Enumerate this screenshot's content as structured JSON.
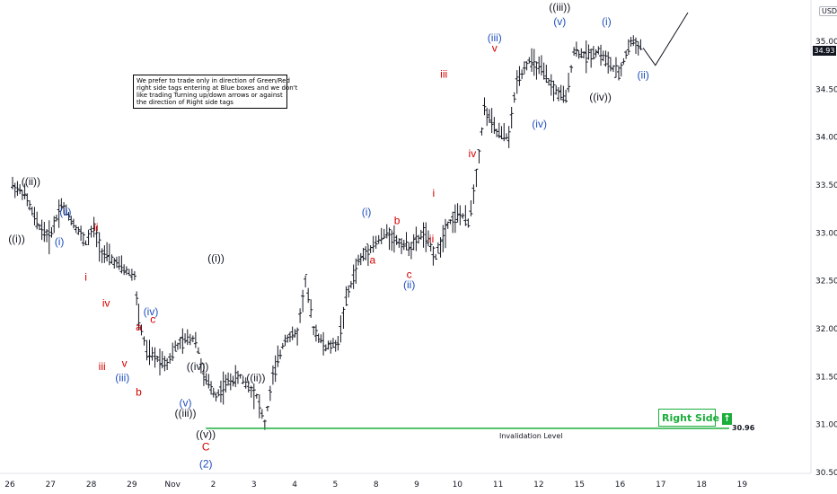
{
  "currency": "USD",
  "last_price": "34.93",
  "note_lines": [
    "We prefer to trade only in direction of Green/Red",
    "right side tags entering at Blue boxes and we don't",
    "like trading Turning up/down arrows or against",
    "the direction of Right side tags"
  ],
  "right_side_label": "Right Side",
  "invalidation_label": "Invalidation Level",
  "invalidation_value_text": "30.96",
  "colors": {
    "black": "#131722",
    "red": "#d50000",
    "blue": "#1f4fbf",
    "green": "#1aae3a"
  },
  "chart_data": {
    "type": "ohlc",
    "title": "",
    "xlabel": "",
    "ylabel": "",
    "ylim": [
      30.5,
      35.2
    ],
    "grid": false,
    "x_ticks": [
      "26",
      "27",
      "28",
      "29",
      "Nov",
      "2",
      "3",
      "4",
      "5",
      "8",
      "9",
      "10",
      "11",
      "12",
      "15",
      "16",
      "17",
      "18",
      "19"
    ],
    "y_ticks": [
      30.5,
      31.0,
      31.5,
      32.0,
      32.5,
      33.0,
      33.5,
      34.0,
      34.5,
      35.0
    ],
    "invalidation_level": 30.96,
    "price_path": [
      {
        "x": 0,
        "y": 33.5
      },
      {
        "x": 0.3,
        "y": 33.4
      },
      {
        "x": 0.6,
        "y": 33.1
      },
      {
        "x": 0.9,
        "y": 32.95
      },
      {
        "x": 1.2,
        "y": 33.3
      },
      {
        "x": 1.5,
        "y": 33.1
      },
      {
        "x": 1.8,
        "y": 32.9
      },
      {
        "x": 2.0,
        "y": 33.05
      },
      {
        "x": 2.2,
        "y": 32.8
      },
      {
        "x": 2.5,
        "y": 32.7
      },
      {
        "x": 2.8,
        "y": 32.6
      },
      {
        "x": 3.0,
        "y": 32.55
      },
      {
        "x": 3.1,
        "y": 32.1
      },
      {
        "x": 3.3,
        "y": 31.75
      },
      {
        "x": 3.5,
        "y": 31.7
      },
      {
        "x": 3.8,
        "y": 31.65
      },
      {
        "x": 4.0,
        "y": 31.8
      },
      {
        "x": 4.3,
        "y": 31.9
      },
      {
        "x": 4.5,
        "y": 31.9
      },
      {
        "x": 4.7,
        "y": 31.5
      },
      {
        "x": 5.0,
        "y": 31.3
      },
      {
        "x": 5.3,
        "y": 31.45
      },
      {
        "x": 5.6,
        "y": 31.5
      },
      {
        "x": 6.0,
        "y": 31.3
      },
      {
        "x": 6.2,
        "y": 31.0
      },
      {
        "x": 6.4,
        "y": 31.5
      },
      {
        "x": 6.7,
        "y": 31.9
      },
      {
        "x": 7.0,
        "y": 31.95
      },
      {
        "x": 7.2,
        "y": 32.5
      },
      {
        "x": 7.4,
        "y": 32.0
      },
      {
        "x": 7.7,
        "y": 31.8
      },
      {
        "x": 8.0,
        "y": 31.85
      },
      {
        "x": 8.2,
        "y": 32.3
      },
      {
        "x": 8.5,
        "y": 32.7
      },
      {
        "x": 8.8,
        "y": 32.85
      },
      {
        "x": 9.2,
        "y": 33.0
      },
      {
        "x": 9.5,
        "y": 32.9
      },
      {
        "x": 9.8,
        "y": 32.85
      },
      {
        "x": 10.1,
        "y": 33.0
      },
      {
        "x": 10.4,
        "y": 32.75
      },
      {
        "x": 10.7,
        "y": 33.1
      },
      {
        "x": 11.0,
        "y": 33.2
      },
      {
        "x": 11.2,
        "y": 33.1
      },
      {
        "x": 11.4,
        "y": 33.6
      },
      {
        "x": 11.6,
        "y": 34.3
      },
      {
        "x": 11.9,
        "y": 34.05
      },
      {
        "x": 12.2,
        "y": 34.0
      },
      {
        "x": 12.4,
        "y": 34.6
      },
      {
        "x": 12.7,
        "y": 34.8
      },
      {
        "x": 13.0,
        "y": 34.7
      },
      {
        "x": 13.3,
        "y": 34.5
      },
      {
        "x": 13.6,
        "y": 34.4
      },
      {
        "x": 13.8,
        "y": 34.9
      },
      {
        "x": 14.1,
        "y": 34.85
      },
      {
        "x": 14.4,
        "y": 34.9
      },
      {
        "x": 14.7,
        "y": 34.75
      },
      {
        "x": 14.9,
        "y": 34.65
      },
      {
        "x": 15.2,
        "y": 35.0
      },
      {
        "x": 15.5,
        "y": 34.93
      }
    ],
    "projection": [
      {
        "x": 15.5,
        "y": 34.93
      },
      {
        "x": 15.8,
        "y": 34.75
      },
      {
        "x": 16.6,
        "y": 35.3
      }
    ],
    "wave_labels": [
      {
        "text": "((i))",
        "x": 0.1,
        "y": 32.9,
        "color": "black"
      },
      {
        "text": "((ii))",
        "x": 0.45,
        "y": 33.5,
        "color": "black"
      },
      {
        "text": "(i)",
        "x": 1.15,
        "y": 32.87,
        "color": "blue"
      },
      {
        "text": "(ii)",
        "x": 1.3,
        "y": 33.18,
        "color": "blue"
      },
      {
        "text": "i",
        "x": 1.8,
        "y": 32.5,
        "color": "red"
      },
      {
        "text": "ii",
        "x": 2.05,
        "y": 33.02,
        "color": "red"
      },
      {
        "text": "iii",
        "x": 2.2,
        "y": 31.57,
        "color": "red"
      },
      {
        "text": "iv",
        "x": 2.3,
        "y": 32.23,
        "color": "red"
      },
      {
        "text": "v",
        "x": 2.75,
        "y": 31.6,
        "color": "red"
      },
      {
        "text": "(iii)",
        "x": 2.7,
        "y": 31.45,
        "color": "blue"
      },
      {
        "text": "a",
        "x": 3.1,
        "y": 31.98,
        "color": "red"
      },
      {
        "text": "b",
        "x": 3.1,
        "y": 31.3,
        "color": "red"
      },
      {
        "text": "(iv)",
        "x": 3.4,
        "y": 32.14,
        "color": "blue"
      },
      {
        "text": "c",
        "x": 3.45,
        "y": 32.06,
        "color": "red"
      },
      {
        "text": "(v)",
        "x": 4.25,
        "y": 31.19,
        "color": "blue"
      },
      {
        "text": "((iii))",
        "x": 4.25,
        "y": 31.08,
        "color": "black"
      },
      {
        "text": "((iv))",
        "x": 4.55,
        "y": 31.57,
        "color": "black"
      },
      {
        "text": "((v))",
        "x": 4.75,
        "y": 30.86,
        "color": "black"
      },
      {
        "text": "C",
        "x": 4.75,
        "y": 30.73,
        "color": "red"
      },
      {
        "text": "(2)",
        "x": 4.75,
        "y": 30.55,
        "color": "blue"
      },
      {
        "text": "((i))",
        "x": 5.0,
        "y": 32.7,
        "color": "black"
      },
      {
        "text": "((ii))",
        "x": 5.98,
        "y": 31.45,
        "color": "black"
      },
      {
        "text": "(i)",
        "x": 8.7,
        "y": 33.18,
        "color": "blue"
      },
      {
        "text": "a",
        "x": 8.85,
        "y": 32.68,
        "color": "red"
      },
      {
        "text": "b",
        "x": 9.45,
        "y": 33.09,
        "color": "red"
      },
      {
        "text": "c",
        "x": 9.75,
        "y": 32.53,
        "color": "red"
      },
      {
        "text": "(ii)",
        "x": 9.75,
        "y": 32.42,
        "color": "blue"
      },
      {
        "text": "i",
        "x": 10.35,
        "y": 33.38,
        "color": "red"
      },
      {
        "text": "ii",
        "x": 10.3,
        "y": 32.9,
        "color": "red"
      },
      {
        "text": "iii",
        "x": 10.6,
        "y": 34.62,
        "color": "red"
      },
      {
        "text": "iv",
        "x": 11.3,
        "y": 33.79,
        "color": "red"
      },
      {
        "text": "(iii)",
        "x": 11.85,
        "y": 35.0,
        "color": "blue"
      },
      {
        "text": "v",
        "x": 11.85,
        "y": 34.89,
        "color": "red"
      },
      {
        "text": "(iv)",
        "x": 12.95,
        "y": 34.1,
        "color": "blue"
      },
      {
        "text": "((iii))",
        "x": 13.45,
        "y": 35.32,
        "color": "black"
      },
      {
        "text": "(v)",
        "x": 13.45,
        "y": 35.17,
        "color": "blue"
      },
      {
        "text": "(i)",
        "x": 14.6,
        "y": 35.17,
        "color": "blue"
      },
      {
        "text": "((iv))",
        "x": 14.45,
        "y": 34.38,
        "color": "black"
      },
      {
        "text": "(ii)",
        "x": 15.5,
        "y": 34.61,
        "color": "blue"
      }
    ]
  }
}
